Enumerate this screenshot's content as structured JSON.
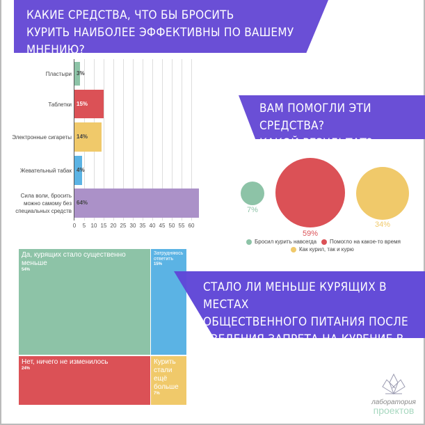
{
  "q1": {
    "line1": "КАКИЕ СРЕДСТВА, ЧТО БЫ БРОСИТЬ",
    "line2": "КУРИТЬ НАИБОЛЕЕ ЭФФЕКТИВНЫ ПО ВАШЕМУ МНЕНИЮ?"
  },
  "q2": {
    "line1": "ВАМ ПОМОГЛИ ЭТИ СРЕДСТВА?",
    "line2": "КАКОЙ РЕЗУЛЬТАТ?"
  },
  "q3": {
    "line1": "СТАЛО ЛИ МЕНЬШЕ КУРЯЩИХ В МЕСТАХ",
    "line2": "ОБЩЕСТВЕННОГО ПИТАНИЯ ПОСЛЕ",
    "line3": "ВВЕДЕНИЯ ЗАПРЕТА НА КУРЕНИЕ В НИХ?"
  },
  "logo": {
    "line1": "лаборатория",
    "line2": "проектов"
  },
  "chart_data": [
    {
      "type": "bar",
      "orientation": "horizontal",
      "categories": [
        "Пластыри",
        "Таблетки",
        "Электронные сигареты",
        "Жевательный табак",
        "Сила воли, бросить можно самому без специальных средств"
      ],
      "values": [
        3,
        15,
        14,
        4,
        64
      ],
      "data_labels": [
        "3%",
        "15%",
        "14%",
        "4%",
        "64%"
      ],
      "colors": [
        "#8dc3a7",
        "#db5156",
        "#f0c96a",
        "#5bb3e4",
        "#ab91c8"
      ],
      "xticks": [
        "0",
        "5",
        "10",
        "15",
        "20",
        "25",
        "30",
        "35",
        "40",
        "45",
        "50",
        "55",
        "60"
      ],
      "xlim": [
        0,
        65
      ],
      "grid": true
    },
    {
      "type": "bubble",
      "series": [
        {
          "name": "Бросил курить навсегда",
          "value": 7,
          "label": "7%",
          "color": "#8dc3a7"
        },
        {
          "name": "Помогло на какое-то время",
          "value": 59,
          "label": "59%",
          "color": "#db5156"
        },
        {
          "name": "Как курил, так и курю",
          "value": 34,
          "label": "34%",
          "color": "#f0c96a"
        }
      ],
      "legend": "bottom"
    },
    {
      "type": "treemap",
      "items": [
        {
          "name": "Да, курящих стало существенно меньше",
          "value": 54,
          "label": "54%",
          "color": "#8dc3a7"
        },
        {
          "name": "Затрудняюсь ответить",
          "value": 15,
          "label": "15%",
          "color": "#5bb3e4"
        },
        {
          "name": "Нет, ничего не изменилось",
          "value": 24,
          "label": "24%",
          "color": "#db5156"
        },
        {
          "name": "Курить стали ещё больше",
          "value": 7,
          "label": "7%",
          "color": "#f0c96a"
        }
      ]
    }
  ]
}
